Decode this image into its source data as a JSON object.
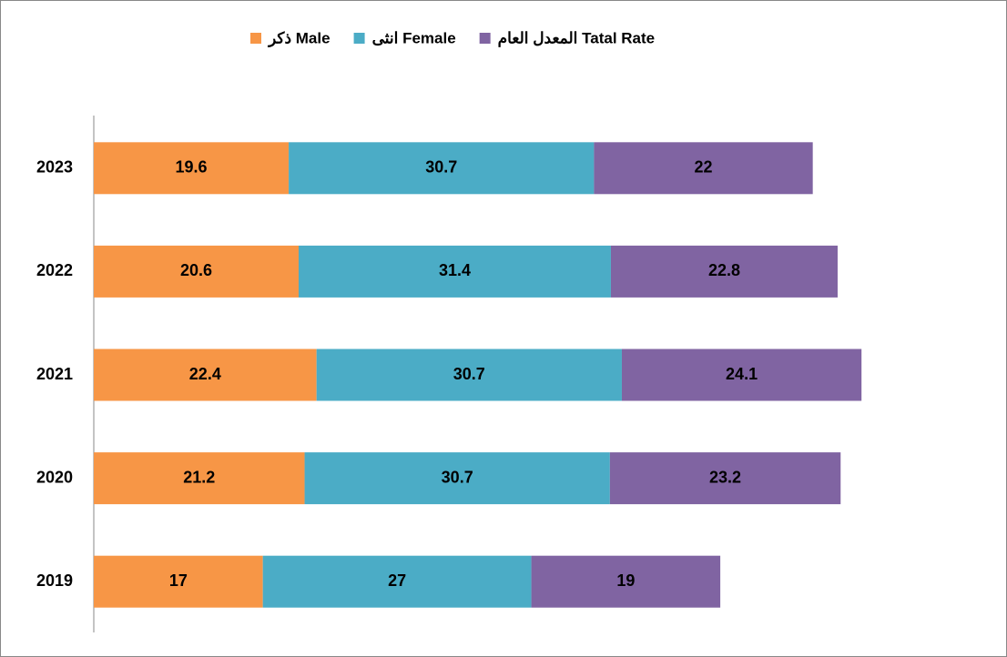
{
  "chart_data": {
    "type": "stacked-barh",
    "categories": [
      "2023",
      "2022",
      "2021",
      "2020",
      "2019"
    ],
    "series": [
      {
        "name": "ذكر Male",
        "color": "#f79646",
        "values": [
          19.6,
          20.6,
          22.4,
          21.2,
          17
        ]
      },
      {
        "name": "انثى Female",
        "color": "#4bacc6",
        "values": [
          30.7,
          31.4,
          30.7,
          30.7,
          27
        ]
      },
      {
        "name": "المعدل العام Tatal Rate",
        "color": "#8064a2",
        "values": [
          22,
          22.8,
          24.1,
          23.2,
          19
        ]
      }
    ],
    "xlim": [
      0,
      90
    ],
    "legend": "top"
  }
}
